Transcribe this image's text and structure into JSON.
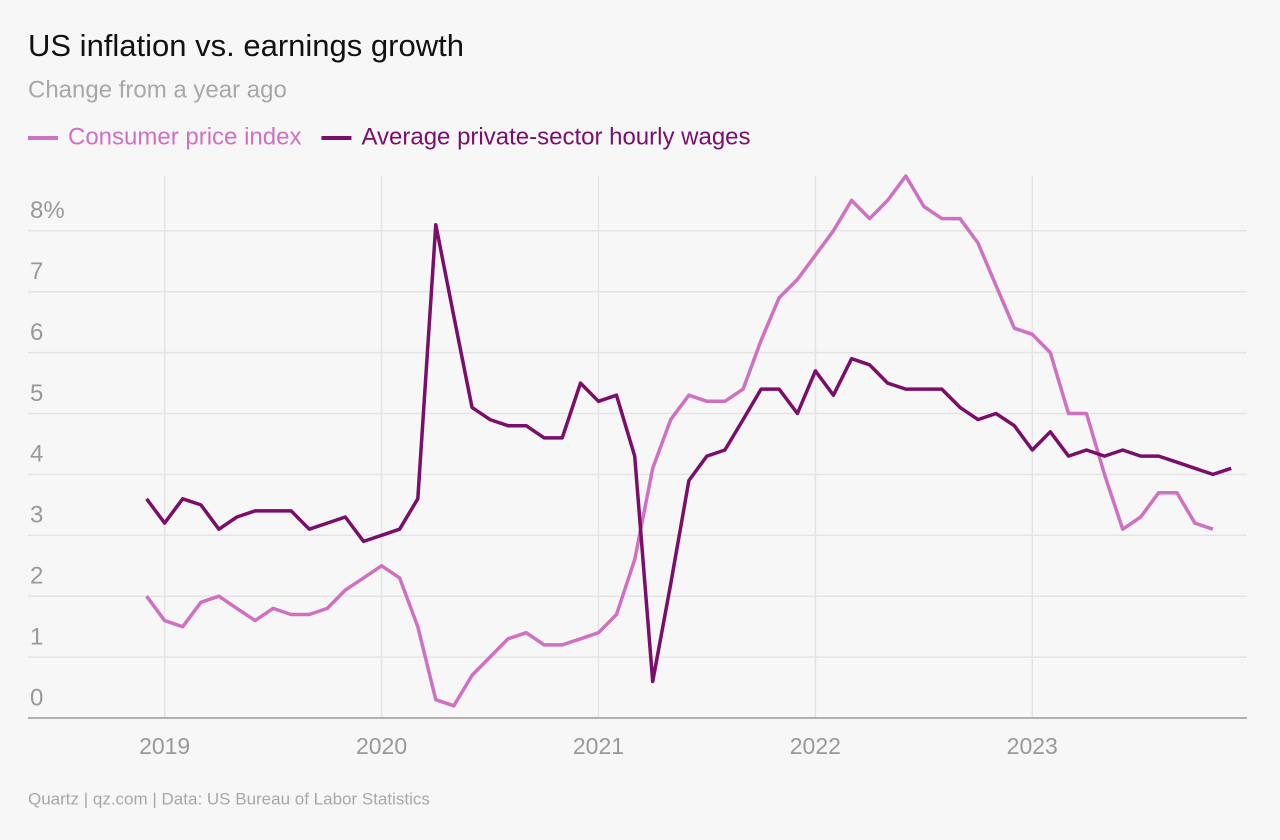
{
  "chart_data": {
    "type": "line",
    "title": "US inflation vs. earnings growth",
    "subtitle": "Change from a year ago",
    "source": "Quartz | qz.com | Data: US Bureau of Labor Statistics",
    "x": [
      2018.917,
      2019,
      2019.083,
      2019.167,
      2019.25,
      2019.333,
      2019.417,
      2019.5,
      2019.583,
      2019.667,
      2019.75,
      2019.833,
      2019.917,
      2020,
      2020.083,
      2020.167,
      2020.25,
      2020.333,
      2020.417,
      2020.5,
      2020.583,
      2020.667,
      2020.75,
      2020.833,
      2020.917,
      2021,
      2021.083,
      2021.167,
      2021.25,
      2021.333,
      2021.417,
      2021.5,
      2021.583,
      2021.667,
      2021.75,
      2021.833,
      2021.917,
      2022,
      2022.083,
      2022.167,
      2022.25,
      2022.333,
      2022.417,
      2022.5,
      2022.583,
      2022.667,
      2022.75,
      2022.833,
      2022.917,
      2023,
      2023.083,
      2023.167,
      2023.25,
      2023.333,
      2023.417,
      2023.5,
      2023.583,
      2023.667,
      2023.75,
      2023.833,
      2023.917
    ],
    "series": [
      {
        "name": "Consumer price index",
        "color": "#d070c0",
        "values": [
          2.0,
          1.6,
          1.5,
          1.9,
          2.0,
          1.8,
          1.6,
          1.8,
          1.7,
          1.7,
          1.8,
          2.1,
          2.3,
          2.5,
          2.3,
          1.5,
          0.3,
          0.2,
          0.7,
          1.0,
          1.3,
          1.4,
          1.2,
          1.2,
          1.3,
          1.4,
          1.7,
          2.6,
          4.1,
          4.9,
          5.3,
          5.2,
          5.2,
          5.4,
          6.2,
          6.9,
          7.2,
          7.6,
          8.0,
          8.5,
          8.2,
          8.5,
          8.9,
          8.4,
          8.2,
          8.2,
          7.8,
          7.1,
          6.4,
          6.3,
          6.0,
          5.0,
          5.0,
          4.0,
          3.1,
          3.3,
          3.7,
          3.7,
          3.2,
          3.1,
          null
        ]
      },
      {
        "name": "Average private-sector hourly wages",
        "color": "#7a0e6a",
        "values": [
          3.6,
          3.2,
          3.6,
          3.5,
          3.1,
          3.3,
          3.4,
          3.4,
          3.4,
          3.1,
          3.2,
          3.3,
          2.9,
          3.0,
          3.1,
          3.6,
          8.1,
          6.6,
          5.1,
          4.9,
          4.8,
          4.8,
          4.6,
          4.6,
          5.5,
          5.2,
          5.3,
          4.3,
          0.6,
          2.2,
          3.9,
          4.3,
          4.4,
          4.9,
          5.4,
          5.4,
          5.0,
          5.7,
          5.3,
          5.9,
          5.8,
          5.5,
          5.4,
          5.4,
          5.4,
          5.1,
          4.9,
          5.0,
          4.8,
          4.4,
          4.7,
          4.3,
          4.4,
          4.3,
          4.4,
          4.3,
          4.3,
          4.2,
          4.1,
          4.0,
          4.1
        ]
      }
    ],
    "xlim": [
      2018.37,
      2023.99
    ],
    "xticks": [
      2019,
      2020,
      2021,
      2022,
      2023
    ],
    "ylim": [
      0,
      8.9
    ],
    "yticks": [
      0,
      1,
      2,
      3,
      4,
      5,
      6,
      7,
      {
        "value": 8,
        "label": "8%"
      }
    ],
    "grid": true
  }
}
